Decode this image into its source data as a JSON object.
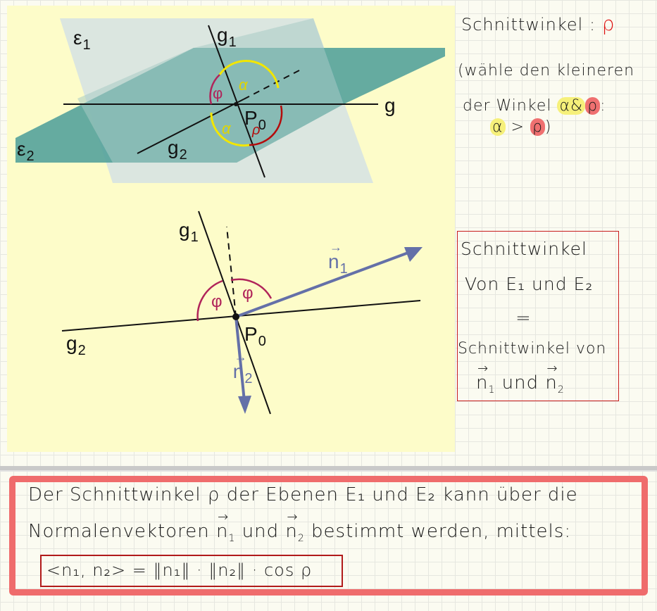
{
  "figure_top": {
    "labels": {
      "e1": "ε",
      "e1_sub": "1",
      "e2": "ε",
      "e2_sub": "2",
      "g1": "g",
      "g1_sub": "1",
      "g2": "g",
      "g2_sub": "2",
      "g": "g",
      "p0": "P",
      "p0_sub": "0",
      "phi": "φ",
      "alpha1": "α",
      "alpha2": "α",
      "rho": "ρ"
    }
  },
  "figure_bottom": {
    "labels": {
      "g1": "g",
      "g1_sub": "1",
      "g2": "g",
      "g2_sub": "2",
      "n1": "n",
      "n1_sub": "1",
      "n2": "n",
      "n2_sub": "2",
      "p0": "P",
      "p0_sub": "0",
      "phi_left": "φ",
      "phi_right": "φ"
    }
  },
  "notes_right": {
    "line1": "Schnittwinkel :",
    "line1_symbol": "ρ",
    "line2": "(wähle den kleineren",
    "line3_a": "der Winkel",
    "line3_alpha": "α",
    "line3_amp": "&",
    "line3_rho": "ρ",
    "line3_colon": ":",
    "line4_alpha": "α",
    "line4_gt": ">",
    "line4_rho": "ρ",
    "line4_close": ")"
  },
  "box_right": {
    "line1": "Schnittwinkel",
    "line2": "Von E₁ und E₂",
    "line3": "=",
    "line4": "Schnittwinkel von",
    "line5_n1": "n",
    "line5_n1_sub": "1",
    "line5_und": "und",
    "line5_n2": "n",
    "line5_n2_sub": "2"
  },
  "bottom_box": {
    "line1": "Der Schnittwinkel ρ der Ebenen E₁ und E₂ kann über die",
    "line2_a": "Normalenvektoren",
    "line2_n1": "n",
    "line2_n1_sub": "1",
    "line2_und": "und",
    "line2_n2": "n",
    "line2_n2_sub": "2",
    "line2_b": "bestimmt werden, mittels:",
    "formula": "<n₁, n₂>  =  ‖n₁‖ · ‖n₂‖ · cos ρ"
  },
  "colors": {
    "plane1": "#d7e3df",
    "plane2": "#57a29b",
    "phi_arc": "#b0245a",
    "alpha_arc": "#f2e600",
    "rho_arc": "#b40c0c",
    "vector": "#6470a8",
    "highlight_yellow": "#f6f07a",
    "highlight_red": "#ef7070",
    "box_border": "#ef6c6c"
  }
}
